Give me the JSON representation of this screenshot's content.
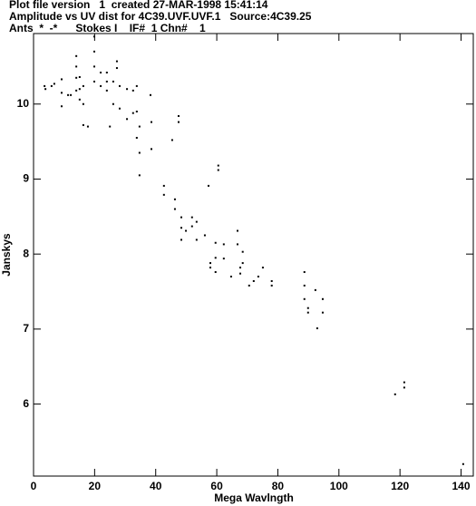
{
  "chart_data": {
    "type": "scatter",
    "header": [
      "Plot file version   1  created 27-MAR-1998 15:41:14",
      "Amplitude vs UV dist for 4C39.UVF.UVF.1   Source:4C39.25",
      "Ants  *  -*      Stokes I    IF#  1 Chn#    1"
    ],
    "x_label": "Mega Wavlngth",
    "y_label": "Janskys",
    "xlim": [
      0,
      144
    ],
    "ylim": [
      5.04,
      10.94
    ],
    "xticks": [
      0,
      20,
      40,
      60,
      80,
      100,
      120,
      140
    ],
    "yticks": [
      6,
      7,
      8,
      9,
      10
    ],
    "color": "#000000",
    "x": [
      3.6,
      3.9,
      5.9,
      6.8,
      9.2,
      9.2,
      9.2,
      11.3,
      12.2,
      14,
      14,
      14,
      14,
      15.1,
      15.1,
      15.1,
      16.3,
      16.3,
      16.3,
      17.8,
      19.9,
      19.9,
      19.9,
      19.9,
      22,
      22,
      24,
      24,
      24,
      25,
      26.1,
      26.1,
      27.3,
      27.3,
      28.2,
      28.2,
      30.6,
      30.6,
      32.6,
      32.6,
      33.8,
      33.8,
      33.8,
      34.7,
      34.7,
      34.7,
      38.3,
      38.6,
      38.6,
      42.7,
      42.7,
      45.4,
      46.3,
      46.3,
      47.5,
      47.5,
      48.4,
      48.4,
      48.4,
      49.9,
      51.9,
      51.9,
      53.4,
      53.4,
      56.1,
      57.3,
      57.9,
      57.9,
      59.6,
      59.6,
      59.6,
      60.5,
      60.5,
      62.3,
      62.3,
      64.7,
      66.8,
      66.8,
      67.7,
      67.7,
      68.5,
      68.5,
      70.6,
      72.1,
      73.6,
      75.1,
      78,
      78,
      88.7,
      88.7,
      88.7,
      89.9,
      89.9,
      92.3,
      92.9,
      94.7,
      94.7,
      118.4,
      121.4,
      121.4,
      140.7
    ],
    "y": [
      10.24,
      10.2,
      10.24,
      10.27,
      10.33,
      10.15,
      9.97,
      10.12,
      10.12,
      10.64,
      10.5,
      10.35,
      10.18,
      10.36,
      10.2,
      10.06,
      10.24,
      10.0,
      9.72,
      9.7,
      10.9,
      10.7,
      10.5,
      10.3,
      10.42,
      10.24,
      10.42,
      10.3,
      10.18,
      9.7,
      10.3,
      10.0,
      10.57,
      10.48,
      10.24,
      9.94,
      10.2,
      9.8,
      10.18,
      9.88,
      10.24,
      9.9,
      9.55,
      9.7,
      9.35,
      9.05,
      10.12,
      9.76,
      9.4,
      8.91,
      8.79,
      9.52,
      8.73,
      8.6,
      9.84,
      9.76,
      8.49,
      8.35,
      8.19,
      8.31,
      8.49,
      8.37,
      8.43,
      8.19,
      8.25,
      8.91,
      7.88,
      7.82,
      8.15,
      7.95,
      7.76,
      9.18,
      9.12,
      8.13,
      7.94,
      7.7,
      8.31,
      8.13,
      7.82,
      7.74,
      8.03,
      7.88,
      7.58,
      7.64,
      7.7,
      7.82,
      7.64,
      7.58,
      7.76,
      7.58,
      7.4,
      7.28,
      7.22,
      7.52,
      7.01,
      7.4,
      7.22,
      6.13,
      6.29,
      6.22,
      5.2
    ]
  }
}
